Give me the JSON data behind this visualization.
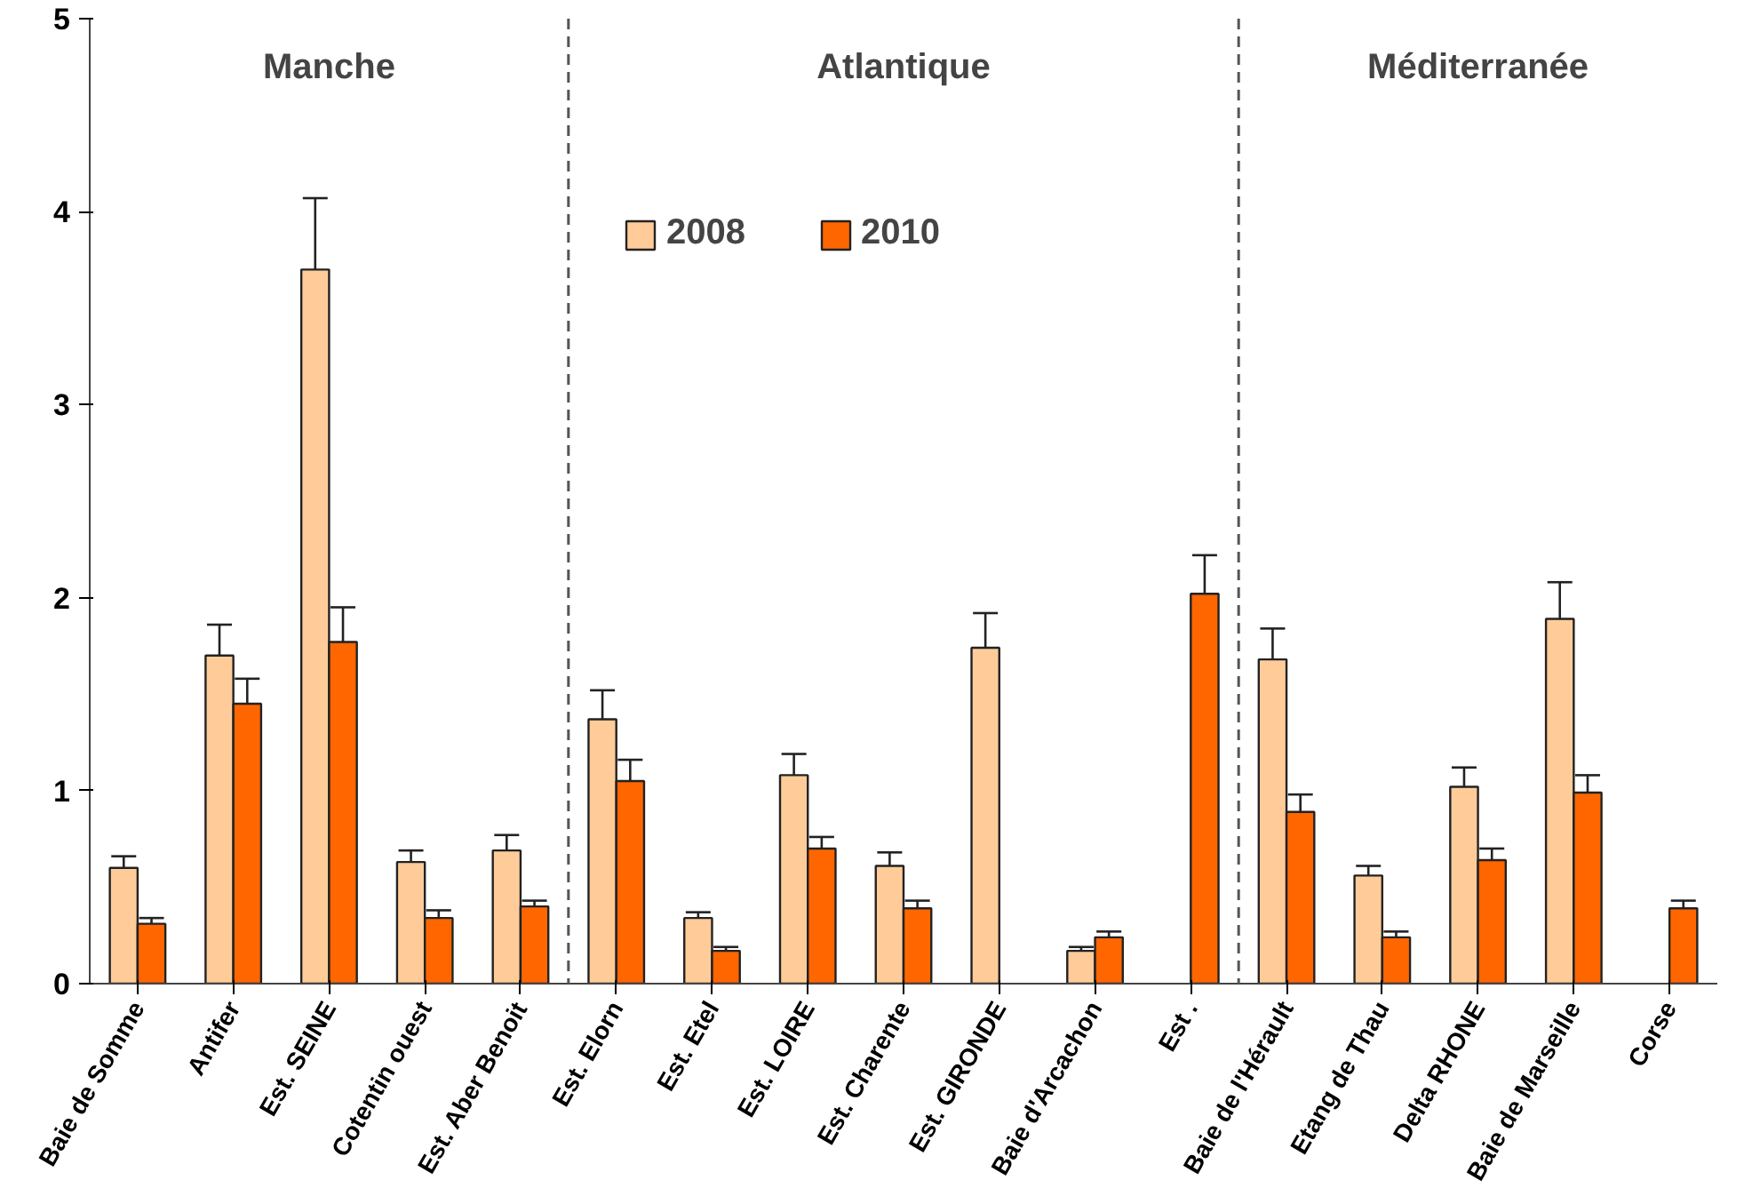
{
  "chart_data": {
    "type": "bar",
    "categories": [
      "Baie de Somme",
      "Antifer",
      "Est. SEINE",
      "Cotentin ouest",
      "Est. Aber Benoit",
      "Est. Elorn",
      "Est. Etel",
      "Est. LOIRE",
      "Est. Charente",
      "Est. GIRONDE",
      "Baie d'Arcachon",
      "Est .",
      "Baie de l'Hérault",
      "Etang de Thau",
      "Delta RHONE",
      "Baie de Marseille",
      "Corse"
    ],
    "series": [
      {
        "name": "2008",
        "color": "#ffcc99",
        "values": [
          0.6,
          1.7,
          3.7,
          0.63,
          0.69,
          1.37,
          0.34,
          1.08,
          0.61,
          1.74,
          0.17,
          null,
          1.68,
          0.56,
          1.02,
          1.89,
          null
        ],
        "errors": [
          0.06,
          0.16,
          0.37,
          0.06,
          0.08,
          0.15,
          0.03,
          0.11,
          0.07,
          0.18,
          0.02,
          null,
          0.16,
          0.05,
          0.1,
          0.19,
          null
        ]
      },
      {
        "name": "2010",
        "color": "#ff6600",
        "values": [
          0.31,
          1.45,
          1.77,
          0.34,
          0.4,
          1.05,
          0.17,
          0.7,
          0.39,
          null,
          0.24,
          2.02,
          0.89,
          0.24,
          0.64,
          0.99,
          0.39
        ],
        "errors": [
          0.03,
          0.13,
          0.18,
          0.04,
          0.03,
          0.11,
          0.02,
          0.06,
          0.04,
          null,
          0.03,
          0.2,
          0.09,
          0.03,
          0.06,
          0.09,
          0.04
        ]
      }
    ],
    "ylim": [
      0,
      5
    ],
    "yticks": [
      0,
      1,
      2,
      3,
      4,
      5
    ],
    "grid": false,
    "legend": "top",
    "annotations": [
      "Manche",
      "Atlantique",
      "Méditerranée"
    ]
  }
}
